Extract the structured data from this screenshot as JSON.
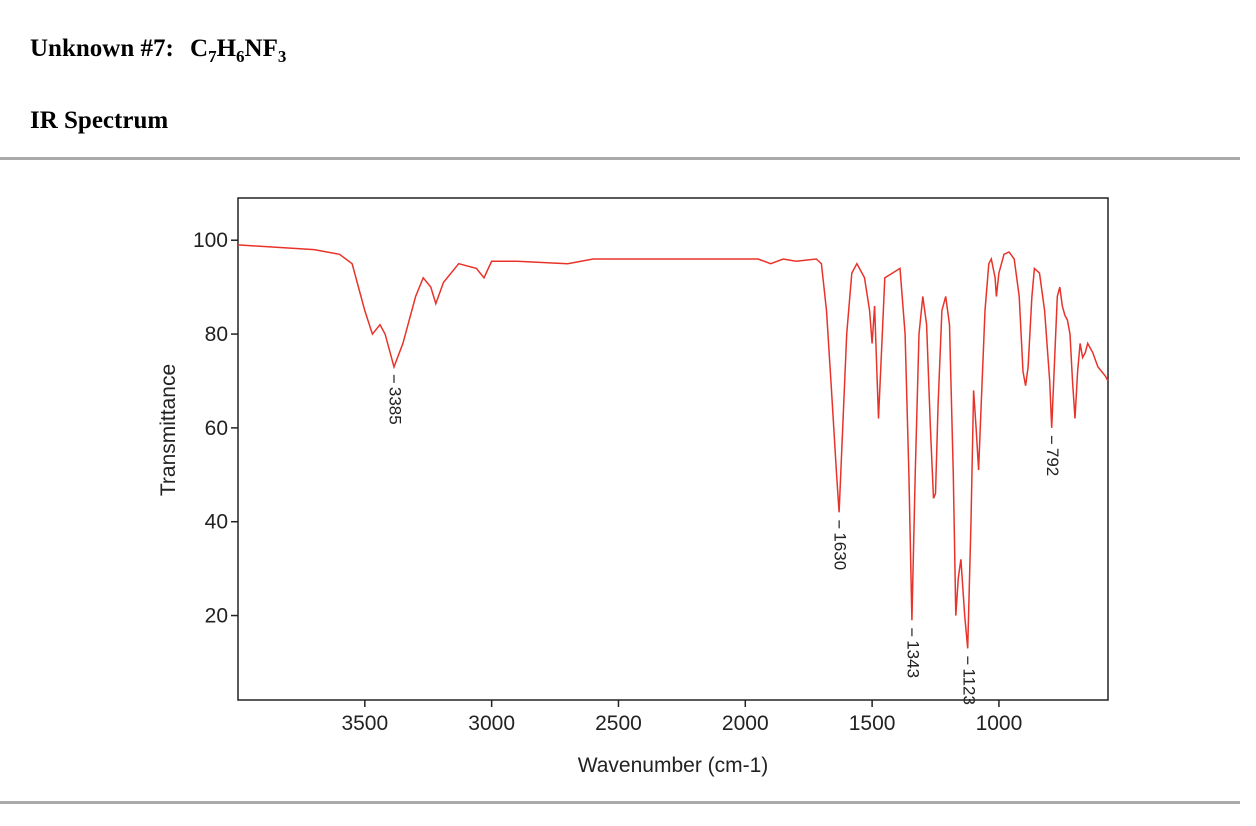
{
  "header": {
    "title": "Unknown #7:",
    "formula": [
      "C",
      "7",
      "H",
      "6",
      "NF",
      "3"
    ],
    "subtitle": "IR Spectrum"
  },
  "chart_data": {
    "type": "line",
    "xlabel": "Wavenumber (cm-1)",
    "ylabel": "Transmittance",
    "color": "#e8332a",
    "xlim": [
      4000,
      570
    ],
    "ylim": [
      2,
      109
    ],
    "xticks": [
      3500,
      3000,
      2500,
      2000,
      1500,
      1000
    ],
    "yticks": [
      20,
      40,
      60,
      80,
      100
    ],
    "x": [
      4000,
      3700,
      3600,
      3550,
      3500,
      3470,
      3440,
      3420,
      3385,
      3350,
      3300,
      3270,
      3240,
      3220,
      3190,
      3130,
      3060,
      3030,
      3000,
      2900,
      2700,
      2600,
      2300,
      2100,
      1950,
      1900,
      1850,
      1800,
      1720,
      1700,
      1680,
      1660,
      1640,
      1630,
      1620,
      1600,
      1580,
      1560,
      1530,
      1510,
      1500,
      1490,
      1475,
      1460,
      1450,
      1420,
      1390,
      1370,
      1355,
      1343,
      1330,
      1315,
      1300,
      1285,
      1270,
      1258,
      1250,
      1240,
      1225,
      1210,
      1195,
      1180,
      1170,
      1160,
      1150,
      1135,
      1123,
      1110,
      1100,
      1090,
      1080,
      1070,
      1055,
      1040,
      1030,
      1015,
      1010,
      1000,
      980,
      960,
      940,
      920,
      905,
      895,
      885,
      870,
      860,
      840,
      820,
      800,
      792,
      780,
      770,
      760,
      750,
      740,
      730,
      720,
      710,
      700,
      690,
      680,
      670,
      660,
      650,
      630,
      610,
      580,
      570
    ],
    "values": [
      99,
      98,
      97,
      95,
      85,
      80,
      82,
      80,
      73,
      78,
      88,
      92,
      90,
      86.5,
      91,
      95,
      94,
      92,
      95.5,
      95.5,
      95,
      96,
      96,
      96,
      96,
      95,
      96,
      95.5,
      96,
      95,
      85,
      68,
      50,
      42,
      55,
      80,
      93,
      95,
      92,
      85,
      78,
      86,
      62,
      80,
      92,
      93,
      94,
      80,
      50,
      19,
      50,
      80,
      88,
      82,
      60,
      45,
      46,
      65,
      85,
      88,
      82,
      50,
      20,
      28,
      32,
      20,
      13,
      40,
      68,
      60,
      51,
      65,
      85,
      95,
      96,
      92,
      88,
      93,
      97,
      97.5,
      96,
      88,
      72,
      69,
      73,
      88,
      94,
      93,
      85,
      70,
      60,
      75,
      88,
      90,
      86,
      84,
      83,
      80,
      70,
      62,
      72,
      78,
      75,
      76,
      78,
      76,
      73,
      71,
      70
    ],
    "annotations": [
      {
        "text": "3385",
        "x": 3385,
        "y": 73
      },
      {
        "text": "1630",
        "x": 1630,
        "y": 42
      },
      {
        "text": "1343",
        "x": 1343,
        "y": 19
      },
      {
        "text": "1123",
        "x": 1123,
        "y": 13
      },
      {
        "text": "792",
        "x": 792,
        "y": 60
      }
    ]
  }
}
